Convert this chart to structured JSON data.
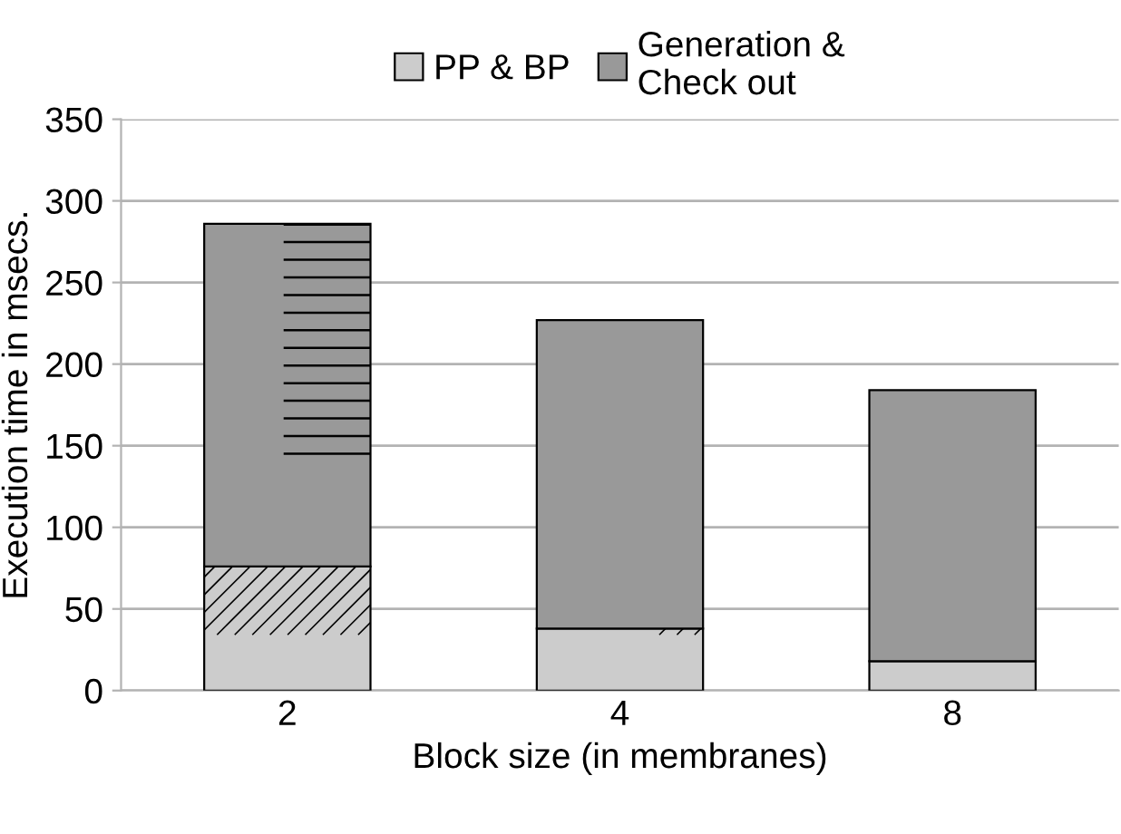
{
  "chart_data": {
    "type": "bar",
    "stacked": true,
    "xlabel": "Block size (in membranes)",
    "ylabel": "Execution time in msecs.",
    "categories": [
      "2",
      "4",
      "8"
    ],
    "series": [
      {
        "name": "PP & BP",
        "color": "#cccccc",
        "values": [
          76,
          38,
          18
        ]
      },
      {
        "name": "Generation &\nCheck out",
        "color": "#999999",
        "values": [
          210,
          189,
          166
        ]
      }
    ],
    "ylim": [
      0,
      350
    ],
    "yticks": [
      0,
      50,
      100,
      150,
      200,
      250,
      300,
      350
    ],
    "grid": "y",
    "legend": "top"
  }
}
